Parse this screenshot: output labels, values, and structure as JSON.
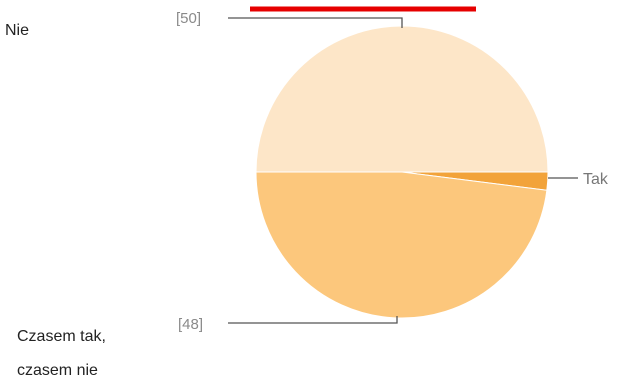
{
  "chart_data": {
    "type": "pie",
    "slices": [
      {
        "label": "Nie",
        "value": 50,
        "value_label": "[50]",
        "color": "#fde6c8"
      },
      {
        "label": "Tak",
        "value": 2,
        "value_label": "",
        "color": "#f2a33a"
      },
      {
        "label": "Czasem tak, czasem nie",
        "label_lines": [
          "Czasem tak,",
          "czasem nie"
        ],
        "value": 48,
        "value_label": "[48]",
        "color": "#fcc77c"
      }
    ],
    "legend": "none",
    "accent_color": "#e60000"
  }
}
